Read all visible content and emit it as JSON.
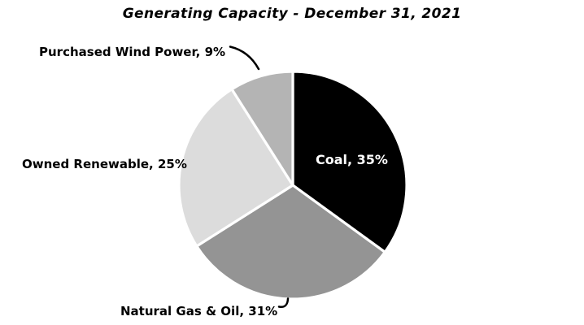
{
  "chart_data": {
    "type": "pie",
    "title": "Generating Capacity - December 31, 2021",
    "unit": "%",
    "direction": "clockwise",
    "start_angle_deg": 0,
    "legend": "none",
    "background_color": "#ffffff",
    "separator_color": "#ffffff",
    "leader_line_color": "#000000",
    "leader_lines_for": [
      "Purchased Wind Power",
      "Natural Gas & Oil"
    ],
    "slices": [
      {
        "label": "Coal",
        "value": 35,
        "display": "Coal, 35%",
        "color": "#000000",
        "label_color": "#ffffff",
        "label_position": "inside"
      },
      {
        "label": "Natural Gas & Oil",
        "value": 31,
        "display": "Natural Gas & Oil, 31%",
        "color": "#949494",
        "label_color": "#000000",
        "label_position": "outside"
      },
      {
        "label": "Owned Renewable",
        "value": 25,
        "display": "Owned Renewable, 25%",
        "color": "#DCDCDC",
        "label_color": "#000000",
        "label_position": "outside"
      },
      {
        "label": "Purchased Wind Power",
        "value": 9,
        "display": "Purchased Wind Power, 9%",
        "color": "#B4B4B4",
        "label_color": "#000000",
        "label_position": "outside"
      }
    ]
  }
}
